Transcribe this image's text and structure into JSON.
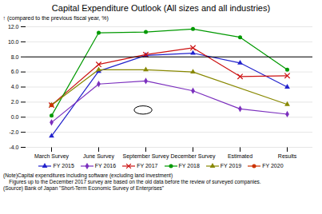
{
  "chart_data": {
    "type": "line",
    "title": "Capital Expenditure Outlook (All sizes and all industries)",
    "ylabel": "(compared to the previous fiscal year, %)",
    "categories": [
      "March Survey",
      "June Survey",
      "September Survey",
      "December Survey",
      "Estimated",
      "Results"
    ],
    "ylim": [
      -4,
      12
    ],
    "yticks": [
      {
        "value": -4,
        "label": "-4.0"
      },
      {
        "value": -2,
        "label": "-2.0"
      },
      {
        "value": 0,
        "label": "0.0"
      },
      {
        "value": 2,
        "label": "2.0"
      },
      {
        "value": 4,
        "label": "4.0"
      },
      {
        "value": 6,
        "label": "6.0"
      },
      {
        "value": 8,
        "label": "8.0"
      },
      {
        "value": 10,
        "label": "10.0"
      },
      {
        "value": 12,
        "label": "12.0"
      }
    ],
    "grid": true,
    "legend": "bottom",
    "series": [
      {
        "name": "FY 2015",
        "color": "#2222CC",
        "marker": "triangle",
        "values": [
          -2.5,
          6.1,
          8.2,
          8.5,
          7.2,
          4.0
        ]
      },
      {
        "name": "FY 2016",
        "color": "#7B2FBE",
        "marker": "diamond",
        "values": [
          -0.7,
          4.4,
          4.8,
          3.5,
          1.1,
          0.4
        ]
      },
      {
        "name": "FY 2017",
        "color": "#CC1111",
        "marker": "x",
        "values": [
          1.6,
          7.0,
          8.3,
          9.2,
          5.4,
          5.5
        ]
      },
      {
        "name": "FY 2018",
        "color": "#009900",
        "marker": "circle",
        "values": [
          0.2,
          11.2,
          11.3,
          11.7,
          10.6,
          6.3
        ]
      },
      {
        "name": "FY 2019",
        "color": "#888800",
        "marker": "triangle",
        "values": [
          1.6,
          6.3,
          6.3,
          6.0,
          null,
          1.7
        ]
      },
      {
        "name": "FY 2020",
        "color": "#CC3300",
        "marker": "circle",
        "values": [
          1.6,
          null,
          null,
          null,
          null,
          null
        ]
      }
    ],
    "reference_line": 8,
    "ellipse": {
      "x": 1.95,
      "y": 0.9,
      "width": 0.38,
      "height": 1.1
    },
    "notes": [
      "(Note)Capital expenditures including software (excluding land investment)",
      "    Figures up to the December 2017 survey are based on the old data before the review of surveyed companies.",
      "(Source) Bank of Japan \"Short-Term Economic Survey of Enterprises\""
    ]
  }
}
